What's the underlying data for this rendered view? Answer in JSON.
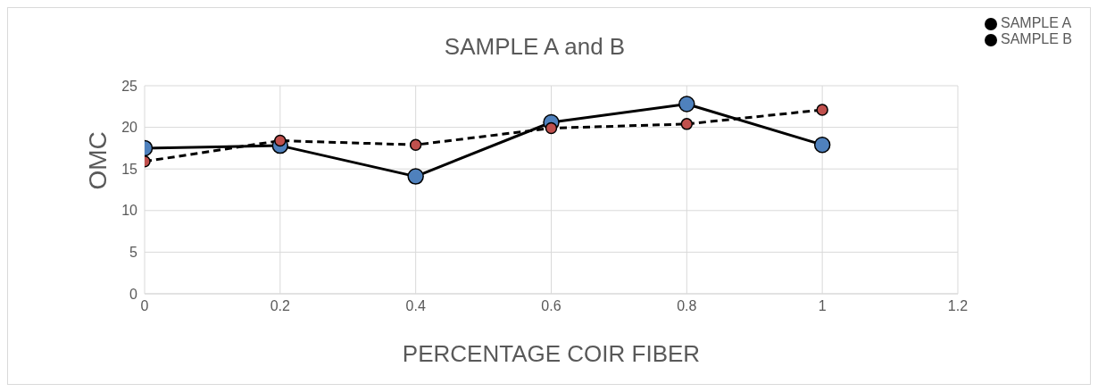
{
  "chart_data": {
    "type": "line",
    "title": "SAMPLE A and B",
    "xlabel": "PERCENTAGE COIR FIBER",
    "ylabel": "OMC",
    "x": [
      0,
      0.2,
      0.4,
      0.6,
      0.8,
      1
    ],
    "series": [
      {
        "name": "SAMPLE A",
        "color": "#4f81bd",
        "values": [
          17.5,
          17.8,
          14.1,
          20.6,
          22.8,
          17.9
        ],
        "line_style": "solid"
      },
      {
        "name": "SAMPLE B",
        "color": "#c0504d",
        "values": [
          15.9,
          18.4,
          17.9,
          19.9,
          20.4,
          22.1
        ],
        "line_style": "dashed"
      }
    ],
    "xlim": [
      0,
      1.2
    ],
    "xticks": [
      0,
      0.2,
      0.4,
      0.6,
      0.8,
      1,
      1.2
    ],
    "ylim": [
      0,
      25
    ],
    "yticks": [
      0,
      5,
      10,
      15,
      20,
      25
    ],
    "grid": true,
    "legend": "top right",
    "marker": "circle"
  }
}
